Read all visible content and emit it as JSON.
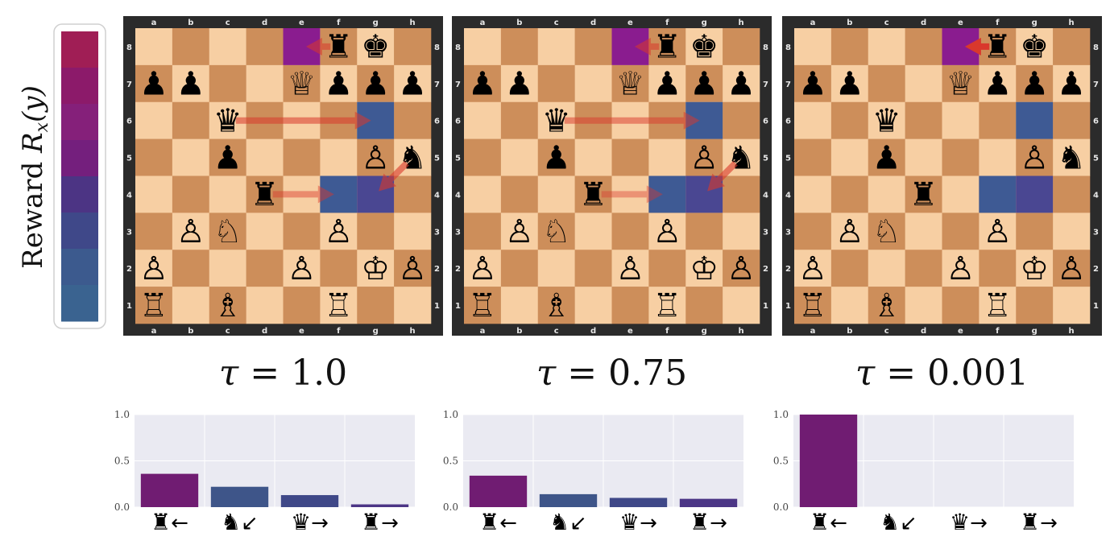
{
  "colorbar": {
    "label_text": "Reward ",
    "label_math": "R",
    "label_sub": "x",
    "label_arg": "(y)",
    "colors": [
      "#a01e55",
      "#8c1a6a",
      "#85207a",
      "#741f7d",
      "#4c3484",
      "#3f4889",
      "#3c5a8e",
      "#3a6390"
    ]
  },
  "board": {
    "files": [
      "a",
      "b",
      "c",
      "d",
      "e",
      "f",
      "g",
      "h"
    ],
    "ranks": [
      "1",
      "2",
      "3",
      "4",
      "5",
      "6",
      "7",
      "8"
    ],
    "light_color": "#f7cfa3",
    "dark_color": "#cd8e5a",
    "frame_color": "#2b2b2b",
    "pieces": [
      {
        "square": "f8",
        "glyph": "♜",
        "name": "black-rook"
      },
      {
        "square": "g8",
        "glyph": "♚",
        "name": "black-king"
      },
      {
        "square": "a7",
        "glyph": "♟",
        "name": "black-pawn"
      },
      {
        "square": "b7",
        "glyph": "♟",
        "name": "black-pawn"
      },
      {
        "square": "e7",
        "glyph": "♕",
        "name": "white-queen"
      },
      {
        "square": "f7",
        "glyph": "♟",
        "name": "black-pawn"
      },
      {
        "square": "g7",
        "glyph": "♟",
        "name": "black-pawn"
      },
      {
        "square": "h7",
        "glyph": "♟",
        "name": "black-pawn"
      },
      {
        "square": "c6",
        "glyph": "♛",
        "name": "black-queen"
      },
      {
        "square": "c5",
        "glyph": "♟",
        "name": "black-pawn"
      },
      {
        "square": "g5",
        "glyph": "♙",
        "name": "white-pawn"
      },
      {
        "square": "h5",
        "glyph": "♞",
        "name": "black-knight"
      },
      {
        "square": "d4",
        "glyph": "♜",
        "name": "black-rook"
      },
      {
        "square": "b3",
        "glyph": "♙",
        "name": "white-pawn"
      },
      {
        "square": "c3",
        "glyph": "♘",
        "name": "white-knight"
      },
      {
        "square": "f3",
        "glyph": "♙",
        "name": "white-pawn"
      },
      {
        "square": "a2",
        "glyph": "♙",
        "name": "white-pawn"
      },
      {
        "square": "e2",
        "glyph": "♙",
        "name": "white-pawn"
      },
      {
        "square": "g2",
        "glyph": "♔",
        "name": "white-king"
      },
      {
        "square": "h2",
        "glyph": "♙",
        "name": "white-pawn"
      },
      {
        "square": "a1",
        "glyph": "♖",
        "name": "white-rook"
      },
      {
        "square": "c1",
        "glyph": "♗",
        "name": "white-bishop"
      },
      {
        "square": "f1",
        "glyph": "♖",
        "name": "white-rook"
      }
    ]
  },
  "moves": [
    {
      "from": "f8",
      "to": "e8",
      "piece": "♜",
      "dir": "←"
    },
    {
      "from": "h5",
      "to": "g4",
      "piece": "♞",
      "dir": "↙"
    },
    {
      "from": "c6",
      "to": "g6",
      "piece": "♛",
      "dir": "→"
    },
    {
      "from": "d4",
      "to": "f4",
      "piece": "♜",
      "dir": "→"
    }
  ],
  "panels": [
    {
      "tau_symbol": "τ",
      "tau_eq": "=",
      "tau_value": "1.0",
      "probs": [
        0.36,
        0.22,
        0.13,
        0.03
      ],
      "bar_colors": [
        "#701c72",
        "#3e5589",
        "#3f4888",
        "#4c3686"
      ],
      "highlights": [
        {
          "square": "e8",
          "color": "#8a1c8f",
          "opacity": 1
        },
        {
          "square": "g6",
          "color": "#3e5a94",
          "opacity": 1
        },
        {
          "square": "f4",
          "color": "#3e5a94",
          "opacity": 1
        },
        {
          "square": "g4",
          "color": "#4a4792",
          "opacity": 1
        }
      ],
      "arrow_opacity": [
        0.55,
        0.6,
        0.55,
        0.45
      ]
    },
    {
      "tau_symbol": "τ",
      "tau_eq": "=",
      "tau_value": "0.75",
      "probs": [
        0.34,
        0.14,
        0.1,
        0.09
      ],
      "bar_colors": [
        "#701c72",
        "#3e5589",
        "#3f4888",
        "#4c3686"
      ],
      "highlights": [
        {
          "square": "e8",
          "color": "#8a1c8f",
          "opacity": 1
        },
        {
          "square": "g6",
          "color": "#3e5a94",
          "opacity": 1
        },
        {
          "square": "f4",
          "color": "#3e5a94",
          "opacity": 1
        },
        {
          "square": "g4",
          "color": "#4a4792",
          "opacity": 1
        }
      ],
      "arrow_opacity": [
        0.55,
        0.6,
        0.5,
        0.4
      ]
    },
    {
      "tau_symbol": "τ",
      "tau_eq": "=",
      "tau_value": "0.001",
      "probs": [
        1.0,
        0.0,
        0.0,
        0.0
      ],
      "bar_colors": [
        "#701c72",
        "#3e5589",
        "#3f4888",
        "#4c3686"
      ],
      "highlights": [
        {
          "square": "e8",
          "color": "#8a1c8f",
          "opacity": 1
        },
        {
          "square": "g6",
          "color": "#3e5a94",
          "opacity": 1
        },
        {
          "square": "f4",
          "color": "#3e5a94",
          "opacity": 1
        },
        {
          "square": "g4",
          "color": "#4a4792",
          "opacity": 1
        }
      ],
      "arrow_opacity": [
        1.0,
        0,
        0,
        0
      ]
    }
  ],
  "bar_chart": {
    "yticks": [
      "0.0",
      "0.5",
      "1.0"
    ],
    "ylim": [
      0,
      1
    ],
    "background": "#eaeaf2",
    "grid": true
  },
  "arrow_color": "#d9382c"
}
